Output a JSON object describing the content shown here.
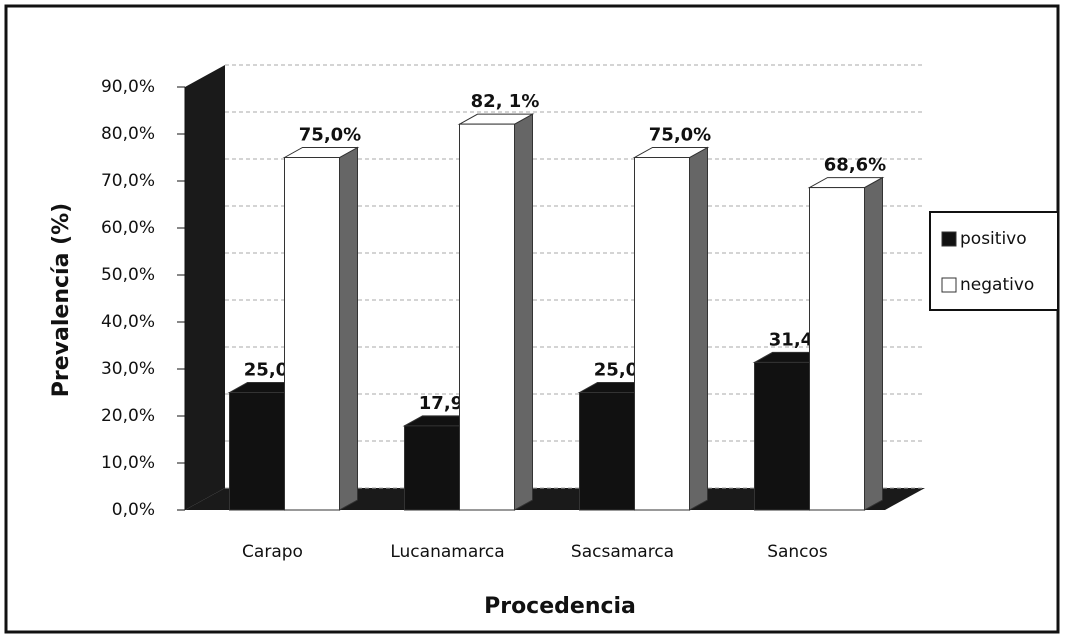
{
  "chart_data": {
    "type": "bar3d",
    "x_label": "Procedencia",
    "y_label": "Prevalencía (%)",
    "categories": [
      "Carapo",
      "Lucanamarca",
      "Sacsamarca",
      "Sancos"
    ],
    "series": [
      {
        "name": "positivo",
        "color": "#111111",
        "values": [
          25.0,
          17.9,
          25.0,
          31.4
        ],
        "value_labels": [
          "25,0%",
          "17,9%",
          "25,0%",
          "31,4%"
        ]
      },
      {
        "name": "negativo",
        "color": "#ffffff",
        "values": [
          75.0,
          82.1,
          75.0,
          68.6
        ],
        "value_labels": [
          "75,0%",
          "82, 1%",
          "75,0%",
          "68,6%"
        ]
      }
    ],
    "ylim": [
      0,
      90
    ],
    "yticks": [
      {
        "value": 0,
        "label": "0,0%"
      },
      {
        "value": 10,
        "label": "10,0%"
      },
      {
        "value": 20,
        "label": "20,0%"
      },
      {
        "value": 30,
        "label": "30,0%"
      },
      {
        "value": 40,
        "label": "40,0%"
      },
      {
        "value": 50,
        "label": "50,0%"
      },
      {
        "value": 60,
        "label": "60,0%"
      },
      {
        "value": 70,
        "label": "70,0%"
      },
      {
        "value": 80,
        "label": "80,0%"
      },
      {
        "value": 90,
        "label": "90,0%"
      }
    ],
    "grid": true,
    "legend": "right"
  }
}
